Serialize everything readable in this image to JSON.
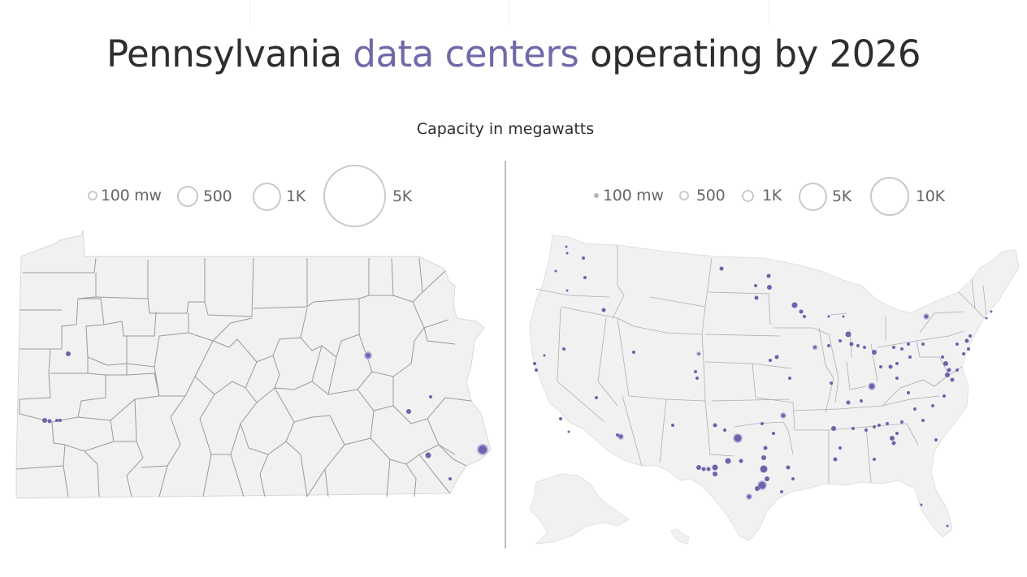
{
  "title": {
    "part1": "Pennsylvania",
    "accent": "data centers",
    "part2": "operating by 2026"
  },
  "subtitle": "Capacity in megawatts",
  "colors": {
    "accent": "#6e6aaa",
    "dot": "#6a64ac",
    "land": "#f1f1f1",
    "border": "#9a9a9a",
    "divider": "#bdbdbd",
    "legend_stroke": "#c9c9c9"
  },
  "pennsylvania_legend": [
    "100 mw",
    "500",
    "1K",
    "5K"
  ],
  "us_legend": [
    "100 mw",
    "500",
    "1K",
    "5K",
    "10K"
  ]
}
